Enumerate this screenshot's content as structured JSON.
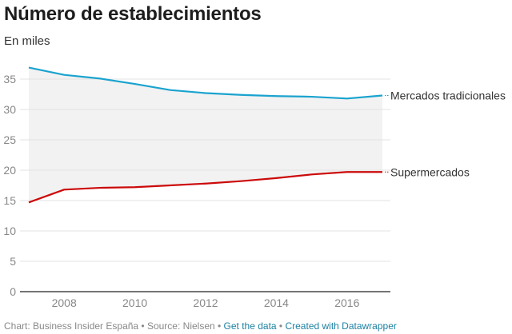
{
  "chart_data": {
    "type": "line",
    "title": "Número de establecimientos",
    "subtitle": "En miles",
    "xlabel": "",
    "ylabel": "",
    "x": [
      2007,
      2008,
      2009,
      2010,
      2011,
      2012,
      2013,
      2014,
      2015,
      2016,
      2017
    ],
    "xlim": [
      2007,
      2017
    ],
    "ylim": [
      0,
      37
    ],
    "grid": true,
    "yticks": [
      0,
      5,
      10,
      15,
      20,
      25,
      30,
      35
    ],
    "ytick_labels": [
      "0",
      "5",
      "10",
      "15",
      "20",
      "25",
      "30",
      "35"
    ],
    "xticks": [
      2008,
      2010,
      2012,
      2014,
      2016
    ],
    "xtick_labels": [
      "2008",
      "2010",
      "2012",
      "2014",
      "2016"
    ],
    "series": [
      {
        "name": "Mercados tradicionales",
        "color": "#1aa3cf",
        "values": [
          36.9,
          35.7,
          35.1,
          34.2,
          33.2,
          32.7,
          32.4,
          32.2,
          32.1,
          31.8,
          32.3
        ]
      },
      {
        "name": "Supermercados",
        "color": "#cc0a0a",
        "values": [
          14.7,
          16.8,
          17.1,
          17.2,
          17.5,
          17.8,
          18.2,
          18.7,
          19.3,
          19.7,
          19.7
        ]
      }
    ],
    "fill_between": {
      "color": "#f2f2f2"
    },
    "legend": "direct-labels-right"
  },
  "footer": {
    "source_text": "Chart: Business Insider España • Source: Nielsen • ",
    "get_data": "Get the data",
    "separator": " • ",
    "created_with": "Created with Datawrapper"
  }
}
